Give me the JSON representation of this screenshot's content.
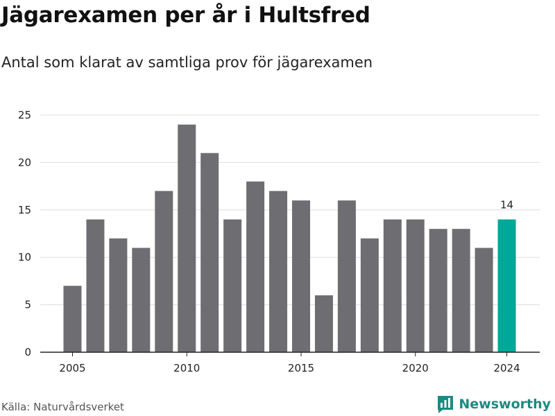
{
  "title": "Jägarexamen per år i Hultsfred",
  "subtitle": "Antal som klarat av samtliga prov för jägarexamen",
  "source": "Källa: Naturvårdsverket",
  "brand": {
    "name": "Newsworthy",
    "icon": "newsworthy-logo-icon"
  },
  "colors": {
    "bar": "#6e6d72",
    "highlight": "#00a89a",
    "grid": "#dddddd",
    "brand": "#1d8a80"
  },
  "chart_data": {
    "type": "bar",
    "title": "Jägarexamen per år i Hultsfred",
    "subtitle": "Antal som klarat av samtliga prov för jägarexamen",
    "xlabel": "",
    "ylabel": "",
    "categories": [
      2005,
      2006,
      2007,
      2008,
      2009,
      2010,
      2011,
      2012,
      2013,
      2014,
      2015,
      2016,
      2017,
      2018,
      2019,
      2020,
      2021,
      2022,
      2023,
      2024
    ],
    "values": [
      7,
      14,
      12,
      11,
      17,
      24,
      21,
      14,
      18,
      17,
      16,
      6,
      16,
      12,
      14,
      14,
      13,
      13,
      11,
      14
    ],
    "highlight": 2024,
    "data_labels": [
      {
        "category": 2024,
        "text": "14"
      }
    ],
    "x_ticks": [
      "2005",
      "2010",
      "2015",
      "2020",
      "2024"
    ],
    "y_ticks": [
      "0",
      "5",
      "10",
      "15",
      "20",
      "25"
    ],
    "ylim": [
      0,
      25
    ],
    "grid": true,
    "legend": "none"
  }
}
